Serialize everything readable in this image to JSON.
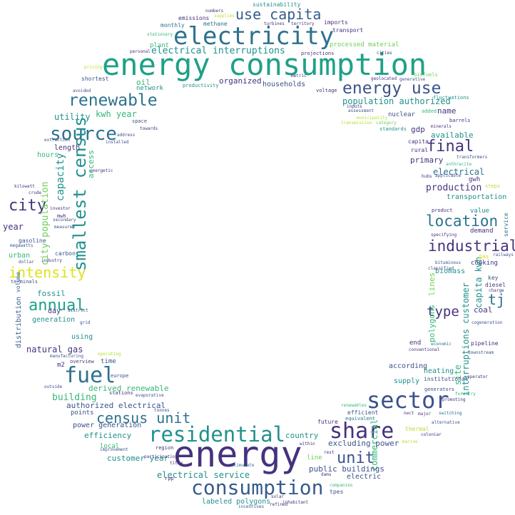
{
  "palette": {
    "dark_purple": "#46327e",
    "navy": "#3b528b",
    "steel_blue": "#365c8d",
    "teal_blue": "#2c728e",
    "teal": "#21918c",
    "sea_green": "#1fa187",
    "green": "#35b779",
    "lime": "#6ece58",
    "yellow_green": "#b5de2b",
    "yellow": "#dde318"
  },
  "words": {
    "energy": "energy",
    "energy_consumption": "energy consumption",
    "electricity": "electricity",
    "sector": "sector",
    "residential": "residential",
    "consumption": "consumption",
    "fuel": "fuel",
    "share": "share",
    "energy_use": "energy use",
    "renewable": "renewable",
    "source": "source",
    "smallest_census": "smallest census",
    "use_capita": "use capita",
    "census_unit": "census unit",
    "intensity": "intensity",
    "annual": "annual",
    "city": "city",
    "final": "final",
    "location": "location",
    "industrial": "industrial",
    "unit": "unit",
    "type": "type",
    "tj": "tj",
    "electrical_interruptions": "electrical interruptions",
    "population_authorized": "population authorized",
    "kwh_year": "kwh year",
    "production": "production",
    "electrical": "electrical",
    "electrical_service": "electrical service",
    "excluding_power": "excluding power",
    "public_buildings": "public buildings",
    "natural_gas": "natural gas",
    "building": "building",
    "customer_year": "customer year",
    "efficiency": "efficiency",
    "power_generation": "power generation",
    "authorized_electrical": "authorized electrical",
    "derived_renewable": "derived renewable",
    "labeled_polygons": "labeled polygons",
    "capacity": "capacity",
    "city_population": "city population",
    "generation": "generation",
    "year": "year",
    "fossil": "fossil",
    "access": "access",
    "utility": "utility",
    "length": "length",
    "hours": "hours",
    "urban": "urban",
    "gasoline": "gasoline",
    "carbon": "carbon",
    "day": "day",
    "using": "using",
    "m2": "m2",
    "time": "time",
    "overview": "overview",
    "europe": "europe",
    "stations": "stations",
    "points": "points",
    "local": "local",
    "region": "region",
    "country": "country",
    "electric": "electric",
    "commercial": "commercial",
    "line": "line",
    "tpes": "tpes",
    "available": "available",
    "primary": "primary",
    "gwh": "gwh",
    "gdp": "gdp",
    "capita": "capita",
    "rural": "rural",
    "nuclear": "nuclear",
    "name": "name",
    "transportation": "transportation",
    "value": "value",
    "demand": "demand",
    "biomass": "biomass",
    "cooking": "cooking",
    "coal": "coal",
    "key": "key",
    "diesel": "diesel",
    "pipeline": "pipeline",
    "capita_kwh": "capita kwh",
    "interruptions_customer": "interruptions customer",
    "site": "site",
    "polygons": "polygons",
    "lines": "lines",
    "end": "end",
    "according": "according",
    "heating": "heating",
    "supply": "supply",
    "institutional": "institutional",
    "organized": "organized",
    "households": "households",
    "oil": "oil",
    "network": "network",
    "plant": "plant",
    "monthly": "monthly",
    "methane": "methane",
    "emissions": "emissions",
    "sustainability": "sustainability",
    "imports": "imports",
    "transport": "transport",
    "processed_material": "processed material",
    "productivity": "productivity",
    "voltage": "voltage",
    "projections": "projections",
    "shortest": "shortest",
    "space": "space",
    "terminals": "terminals",
    "distribution": "distribution",
    "volume": "volume",
    "standards": "standards",
    "added": "added",
    "barrels": "barrels",
    "biofuels": "biofuels",
    "fluctuations": "fluctuations",
    "steps": "steps",
    "service": "service",
    "cogeneration": "cogeneration",
    "downstream": "downstream",
    "charge": "charge",
    "railways": "railways",
    "gas": "gas",
    "product": "product",
    "specifying": "specifying",
    "generators": "generators",
    "efficient": "efficient",
    "equivalent": "equivalent",
    "future": "future",
    "thermal": "thermal",
    "major": "major",
    "alternative": "alternative",
    "coloniar": "coloniar",
    "stimulate": "stimulate",
    "incentives": "incentives",
    "refined": "refined",
    "inhabitant": "inhabitant",
    "companies": "companies",
    "participation": "participation",
    "title": "title",
    "solar": "solar",
    "forestry": "forestry",
    "switching": "switching",
    "promoting": "promoting",
    "operator": "operator",
    "evaporative": "evaporative",
    "tonnes": "tonnes",
    "economic": "economic",
    "conventional": "conventional",
    "classified": "classified",
    "bituminous": "bituminous",
    "transformers": "transformers",
    "hubs": "hubs",
    "applicable": "applicable",
    "anthracite": "anthracite",
    "crude": "crude",
    "kilowatt": "kilowatt",
    "megawatts": "megawatts",
    "industry": "industry",
    "dollar": "dollar",
    "lignite": "lignite",
    "secondary": "secondary",
    "investor": "investor",
    "consumers": "consumers",
    "manufacturing": "manufacturing",
    "operating": "operating",
    "outside": "outside",
    "district": "district",
    "grid": "grid",
    "energetic": "energetic",
    "extraction": "extraction",
    "installed": "installed",
    "address": "address",
    "towards": "towards",
    "avoided": "avoided",
    "pricing": "pricing",
    "origin": "origin",
    "personal": "personal",
    "stationary": "stationary",
    "numbers": "numbers",
    "supplies": "supplies",
    "territory": "territory",
    "turbines": "turbines",
    "cities": "cities",
    "geolocated": "geolocated",
    "generative": "generative",
    "metric": "metric",
    "category": "category",
    "assessment": "assessment",
    "municipality": "municipality",
    "transmission": "transmission",
    "minerals": "minerals",
    "inputs": "inputs",
    "private": "private",
    "kind": "kind",
    "indicator": "indicator",
    "size": "size",
    "residues": "residues",
    "consumed": "consumed",
    "longest": "longest",
    "mwh": "mwh",
    "measured": "measured",
    "sources": "sources",
    "renewables": "renewables",
    "marine": "marine",
    "rest": "rest",
    "dams": "dams",
    "within": "within",
    "losses": "losses",
    "reporting": "reporting",
    "implicit": "implicit",
    "content": "content",
    "cross": "cross",
    "trade": "trade",
    "real": "real",
    "base": "base",
    "output": "output",
    "retirement": "retirement",
    "pressure": "pressure",
    "improvement": "improvement",
    "rpp": "rpp",
    "main": "main",
    "listed": "listed",
    "nwct": "nwct",
    "coal_k": "coal",
    "roads": "roads",
    "gigajoules": "gigajoules",
    "filed": "filed",
    "upward": "upward",
    "mining": "mining"
  }
}
